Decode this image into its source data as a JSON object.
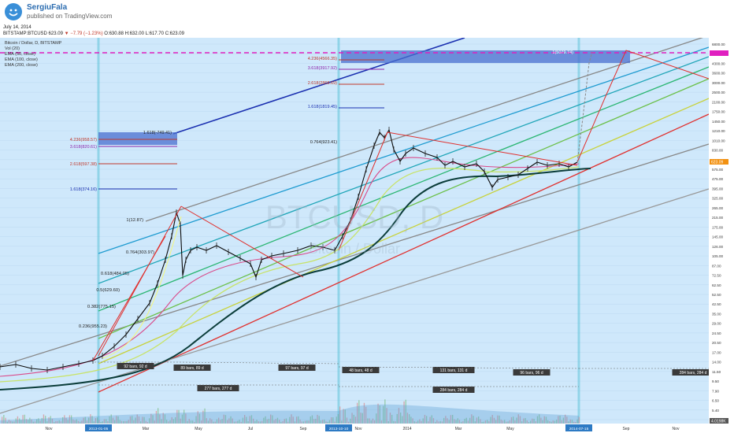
{
  "header": {
    "author": "SergiuFala",
    "published": "published on TradingView.com",
    "date": "July 14, 2014",
    "symbol_line": "BITSTAMP:BTCUSD 623.09",
    "change": "▼ −7.79 (−1.23%)",
    "ohlc": "O:630.88 H:632.00 L:617.70 C:623.09"
  },
  "legend": {
    "title": "Bitcoin / Dollar, D, BITSTAMP",
    "vol": "Vol (20)",
    "ema50": "EMA (50, close)",
    "ema100": "EMA (100, close)",
    "ema200": "EMA (200, close)"
  },
  "watermark": {
    "symbol": "BTCUSD, D",
    "name": "Bitcoin / Dollar"
  },
  "chart_data": {
    "type": "line",
    "scale": "log",
    "title": "Bitcoin / Dollar, D, BITSTAMP",
    "ylim": [
      4.5,
      6800
    ],
    "x_ticks": [
      "Nov",
      "2013-01-05",
      "Mar",
      "May",
      "Jul",
      "Sep",
      "2013-10-10",
      "Nov",
      "2014",
      "Mar",
      "May",
      "2014-07-15",
      "Sep",
      "Nov"
    ],
    "y_ticks": [
      "6800.00",
      "5400.00",
      "4300.00",
      "3600.00",
      "3000.00",
      "2500.00",
      "2100.00",
      "1750.00",
      "1450.00",
      "1210.00",
      "1010.00",
      "830.00",
      "695.00",
      "575.00",
      "475.00",
      "395.00",
      "325.00",
      "265.00",
      "215.00",
      "175.00",
      "145.00",
      "126.00",
      "105.00",
      "87.00",
      "72.50",
      "62.50",
      "52.50",
      "42.50",
      "35.00",
      "29.00",
      "24.50",
      "20.50",
      "17.00",
      "14.00",
      "11.50",
      "9.50",
      "7.90",
      "6.50",
      "5.40",
      "4.50"
    ],
    "price_label": "623.09",
    "vol_label": "4.0198K",
    "series": [
      {
        "name": "BTCUSD",
        "values": [
          11,
          12,
          13,
          14,
          22,
          40,
          95,
          230,
          110,
          120,
          105,
          80,
          95,
          120,
          140,
          200,
          500,
          1150,
          900,
          650,
          800,
          600,
          450,
          580,
          623
        ]
      }
    ],
    "fib_left": [
      {
        "label": "1.618(374.16)",
        "color": "#1a2fb0"
      },
      {
        "label": "2.618(597.38)",
        "color": "#c0392b"
      },
      {
        "label": "3.618(820.61)",
        "color": "#8e24aa"
      },
      {
        "label": "4.236(958.57)",
        "color": "#c0392b"
      },
      {
        "label": "1.618(-749.41)",
        "color": "#222"
      },
      {
        "label": "1(12.87)",
        "color": "#222"
      },
      {
        "label": "0.764(303.97)",
        "color": "#222"
      },
      {
        "label": "0.618(484.05)",
        "color": "#222"
      },
      {
        "label": "0.5(629.60)",
        "color": "#222"
      },
      {
        "label": "0.382(775.15)",
        "color": "#222"
      },
      {
        "label": "0.236(955.23)",
        "color": "#222"
      }
    ],
    "fib_mid": [
      {
        "label": "4.236(4566.35)",
        "color": "#c0392b"
      },
      {
        "label": "3.618(3917.92)",
        "color": "#8e24aa"
      },
      {
        "label": "2.618(2868.69)",
        "color": "#c0392b"
      },
      {
        "label": "1.618(1819.45)",
        "color": "#1a2fb0"
      },
      {
        "label": "0.764(923.41)",
        "color": "#222"
      }
    ],
    "fib_right": {
      "label": "1(5079.74)"
    },
    "measure_labels": [
      "92 bars, 92 d",
      "89 bars, 89 d",
      "97 bars, 97 d",
      "48 bars, 48 d",
      "131 bars, 131 d",
      "96 bars, 96 d",
      "284 bars, 284 d",
      "277 bars, 277 d",
      "284 bars, 284 d"
    ],
    "colors": {
      "bg": "#cfe8fb",
      "up": "#0a0a0a",
      "ema50": "#d94a8a",
      "ema100": "#c8e36a",
      "ema200": "#0b3d3a",
      "target": "#e020c0"
    }
  }
}
